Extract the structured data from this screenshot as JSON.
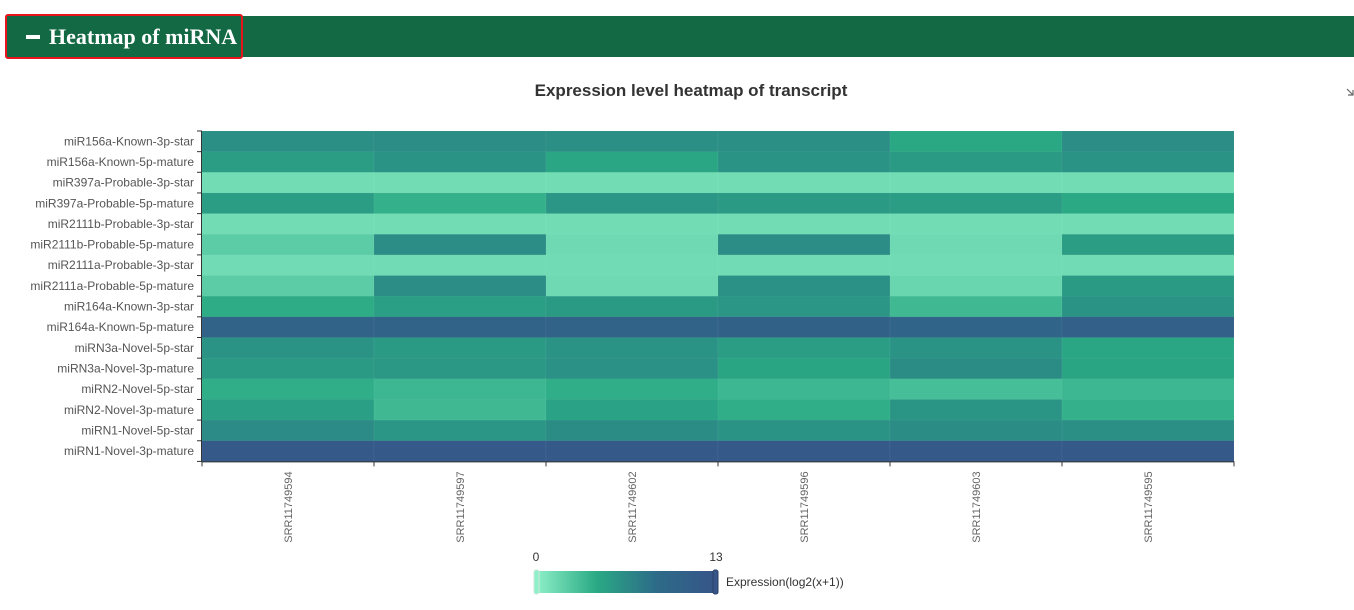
{
  "section": {
    "title": "Heatmap of miRNA",
    "toggle_icon": "minus-icon",
    "header_color": "#136944",
    "highlight_color": "#e8141c"
  },
  "chart_data": {
    "type": "heatmap",
    "title": "Expression level heatmap of transcript",
    "rows": [
      "miR156a-Known-3p-star",
      "miR156a-Known-5p-mature",
      "miR397a-Probable-3p-star",
      "miR397a-Probable-5p-mature",
      "miR2111b-Probable-3p-star",
      "miR2111b-Probable-5p-mature",
      "miR2111a-Probable-3p-star",
      "miR2111a-Probable-5p-mature",
      "miR164a-Known-3p-star",
      "miR164a-Known-5p-mature",
      "miRN3a-Novel-5p-star",
      "miRN3a-Novel-3p-mature",
      "miRN2-Novel-5p-star",
      "miRN2-Novel-3p-mature",
      "miRN1-Novel-5p-star",
      "miRN1-Novel-3p-mature"
    ],
    "columns": [
      "SRR11749594",
      "SRR11749597",
      "SRR11749602",
      "SRR11749596",
      "SRR11749603",
      "SRR11749595"
    ],
    "values": [
      [
        6.2,
        6.3,
        6.2,
        6.2,
        4.5,
        6.3
      ],
      [
        5.2,
        5.9,
        4.6,
        5.9,
        5.4,
        5.9
      ],
      [
        1.2,
        1.2,
        1.2,
        1.2,
        1.2,
        1.2
      ],
      [
        5.2,
        3.9,
        5.7,
        5.4,
        5.2,
        4.4
      ],
      [
        1.2,
        1.2,
        1.2,
        1.2,
        1.2,
        1.2
      ],
      [
        2.2,
        6.3,
        1.4,
        6.3,
        1.4,
        5.2
      ],
      [
        1.3,
        1.3,
        1.3,
        1.3,
        1.3,
        1.3
      ],
      [
        2.2,
        6.3,
        1.4,
        6.1,
        1.6,
        5.4
      ],
      [
        4.2,
        5.1,
        5.4,
        5.7,
        3.4,
        5.9
      ],
      [
        10.2,
        10.4,
        10.2,
        10.7,
        10.0,
        10.9
      ],
      [
        5.9,
        5.4,
        5.9,
        5.2,
        5.9,
        4.6
      ],
      [
        5.4,
        5.6,
        6.1,
        4.7,
        6.4,
        4.7
      ],
      [
        4.1,
        3.5,
        4.1,
        3.5,
        3.1,
        3.5
      ],
      [
        5.1,
        3.4,
        4.9,
        4.1,
        5.8,
        3.9
      ],
      [
        6.5,
        5.7,
        6.4,
        5.9,
        6.4,
        6.2
      ],
      [
        12.2,
        12.2,
        12.2,
        12.2,
        12.2,
        12.2
      ]
    ],
    "colorscale": {
      "min": 0,
      "max": 13,
      "min_label": "0",
      "max_label": "13",
      "colors": [
        "#8ef0c8",
        "#2aaa84",
        "#2d6b88",
        "#375589"
      ],
      "label": "Expression(log2(x+1))"
    },
    "grid": false
  }
}
